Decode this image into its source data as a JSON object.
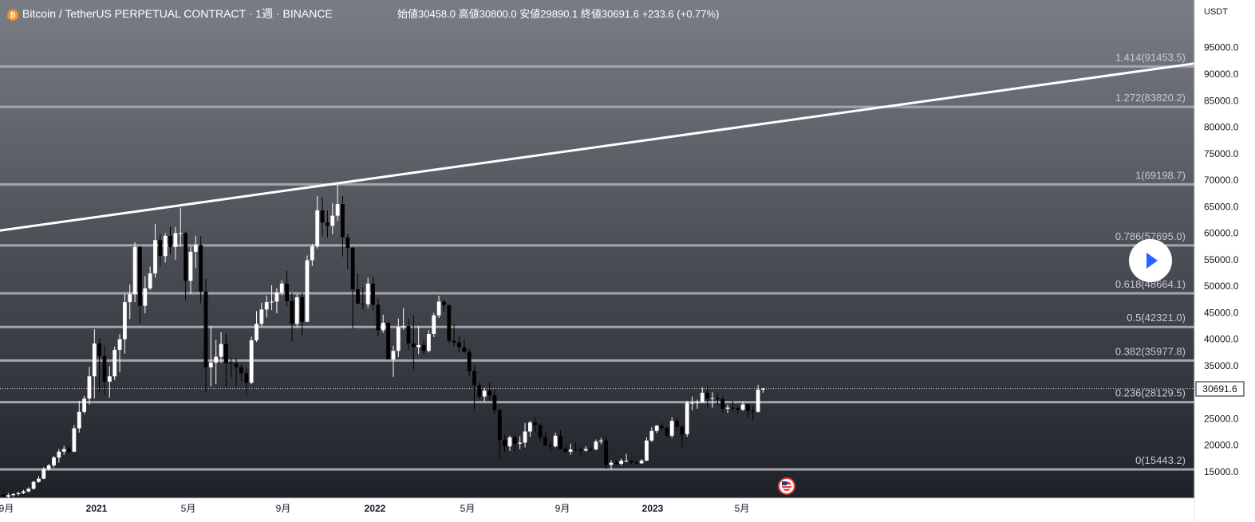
{
  "header": {
    "symbol": "Bitcoin / TetherUS PERPETUAL CONTRACT",
    "separator": " · ",
    "interval": "1週",
    "exchange": "BINANCE",
    "open_label": "始値",
    "open_value": "30458.0",
    "high_label": "高値",
    "high_value": "30800.0",
    "low_label": "安値",
    "low_value": "29890.1",
    "close_label": "終値",
    "close_value": "30691.6",
    "change": "+233.6 (+0.77%)"
  },
  "price_axis": {
    "currency": "USDT",
    "ticks": [
      "95000.0",
      "90000.0",
      "85000.0",
      "80000.0",
      "75000.0",
      "70000.0",
      "65000.0",
      "60000.0",
      "55000.0",
      "50000.0",
      "45000.0",
      "40000.0",
      "35000.0",
      "30000.0",
      "25000.0",
      "20000.0",
      "15000.0"
    ],
    "tick_values": [
      95000,
      90000,
      85000,
      80000,
      75000,
      70000,
      65000,
      60000,
      55000,
      50000,
      45000,
      40000,
      35000,
      30000,
      25000,
      20000,
      15000
    ],
    "last_price_label": "30691.6"
  },
  "time_axis": {
    "labels": [
      "9月",
      "2021",
      "5月",
      "9月",
      "2022",
      "5月",
      "9月",
      "2023",
      "5月"
    ],
    "bold": [
      false,
      true,
      false,
      false,
      true,
      false,
      false,
      true,
      false
    ]
  },
  "colors": {
    "bg_top": "#7b7d86",
    "bg_bottom": "#1f2128",
    "fib_line": "#a4a6ad",
    "candle_up": "#ffffff",
    "candle_down": "#000000",
    "trendline": "#ffffff",
    "axis_bg": "#ffffff",
    "axis_text": "#131722",
    "accent": "#f7931a"
  },
  "icons": {
    "symbol_logo": "bitcoin-logo-icon",
    "play": "play-icon",
    "event": "us-flag-event-icon"
  },
  "chart_data": {
    "type": "candlestick",
    "title": "Bitcoin / TetherUS PERPETUAL CONTRACT · 1週 · BINANCE",
    "interval": "1 week",
    "y_scale": "linear",
    "ylim": [
      10000,
      103000
    ],
    "fib_levels": [
      {
        "label": "1.414(91453.5)",
        "value": 91453.5
      },
      {
        "label": "1.272(83820.2)",
        "value": 83820.2
      },
      {
        "label": "1(69198.7)",
        "value": 69198.7
      },
      {
        "label": "0.786(57695.0)",
        "value": 57695.0
      },
      {
        "label": "0.618(48664.1)",
        "value": 48664.1
      },
      {
        "label": "0.5(42321.0)",
        "value": 42321.0
      },
      {
        "label": "0.382(35977.8)",
        "value": 35977.8
      },
      {
        "label": "0.236(28129.5)",
        "value": 28129.5
      },
      {
        "label": "0(15443.2)",
        "value": 15443.2
      }
    ],
    "trendline": {
      "start_price": 60500,
      "end_price": 92000
    },
    "last_price": 30691.6,
    "candles": [
      {
        "o": 10700,
        "h": 10900,
        "l": 10200,
        "c": 10300
      },
      {
        "o": 10300,
        "h": 11000,
        "l": 10100,
        "c": 10600
      },
      {
        "o": 10600,
        "h": 11000,
        "l": 10300,
        "c": 10800
      },
      {
        "o": 10800,
        "h": 11200,
        "l": 10500,
        "c": 11000
      },
      {
        "o": 11000,
        "h": 11600,
        "l": 10800,
        "c": 11300
      },
      {
        "o": 11300,
        "h": 12100,
        "l": 11100,
        "c": 11800
      },
      {
        "o": 11800,
        "h": 13300,
        "l": 11600,
        "c": 13100
      },
      {
        "o": 13100,
        "h": 14200,
        "l": 12900,
        "c": 13700
      },
      {
        "o": 13700,
        "h": 15900,
        "l": 13600,
        "c": 15500
      },
      {
        "o": 15500,
        "h": 16500,
        "l": 15200,
        "c": 16200
      },
      {
        "o": 16200,
        "h": 18000,
        "l": 15800,
        "c": 17700
      },
      {
        "o": 17700,
        "h": 19300,
        "l": 16700,
        "c": 18800
      },
      {
        "o": 18800,
        "h": 19900,
        "l": 18200,
        "c": 19300
      },
      {
        "o": 19300,
        "h": 19800,
        "l": 18500,
        "c": 18800
      },
      {
        "o": 18800,
        "h": 23800,
        "l": 18700,
        "c": 23200
      },
      {
        "o": 23200,
        "h": 28400,
        "l": 22400,
        "c": 26300
      },
      {
        "o": 26300,
        "h": 29300,
        "l": 25900,
        "c": 28800
      },
      {
        "o": 28800,
        "h": 34800,
        "l": 27700,
        "c": 33000
      },
      {
        "o": 33000,
        "h": 41900,
        "l": 28800,
        "c": 39200
      },
      {
        "o": 39200,
        "h": 40100,
        "l": 30100,
        "c": 36800
      },
      {
        "o": 36800,
        "h": 38800,
        "l": 29500,
        "c": 32000
      },
      {
        "o": 32000,
        "h": 34900,
        "l": 29000,
        "c": 33000
      },
      {
        "o": 33000,
        "h": 38600,
        "l": 32300,
        "c": 38000
      },
      {
        "o": 38000,
        "h": 41000,
        "l": 33800,
        "c": 40000
      },
      {
        "o": 40000,
        "h": 48500,
        "l": 37300,
        "c": 47000
      },
      {
        "o": 47000,
        "h": 50300,
        "l": 43800,
        "c": 48500
      },
      {
        "o": 48500,
        "h": 58300,
        "l": 47000,
        "c": 57400
      },
      {
        "o": 57400,
        "h": 57600,
        "l": 43000,
        "c": 46300
      },
      {
        "o": 46300,
        "h": 51900,
        "l": 44900,
        "c": 49600
      },
      {
        "o": 49600,
        "h": 53700,
        "l": 49300,
        "c": 52400
      },
      {
        "o": 52400,
        "h": 61700,
        "l": 51600,
        "c": 58700
      },
      {
        "o": 58700,
        "h": 59800,
        "l": 53700,
        "c": 55700
      },
      {
        "o": 55700,
        "h": 60000,
        "l": 54500,
        "c": 59500
      },
      {
        "o": 59500,
        "h": 61200,
        "l": 56000,
        "c": 57400
      },
      {
        "o": 57400,
        "h": 61200,
        "l": 55000,
        "c": 60000
      },
      {
        "o": 60000,
        "h": 64800,
        "l": 57500,
        "c": 60000
      },
      {
        "o": 60000,
        "h": 60300,
        "l": 47300,
        "c": 51000
      },
      {
        "o": 51000,
        "h": 57500,
        "l": 48500,
        "c": 56500
      },
      {
        "o": 56500,
        "h": 59500,
        "l": 53400,
        "c": 57800
      },
      {
        "o": 57800,
        "h": 59400,
        "l": 46800,
        "c": 49000
      },
      {
        "o": 49000,
        "h": 51400,
        "l": 30000,
        "c": 34700
      },
      {
        "o": 34700,
        "h": 42500,
        "l": 31100,
        "c": 35600
      },
      {
        "o": 35600,
        "h": 39900,
        "l": 31500,
        "c": 36700
      },
      {
        "o": 36700,
        "h": 41300,
        "l": 35500,
        "c": 39100
      },
      {
        "o": 39100,
        "h": 41100,
        "l": 31000,
        "c": 35500
      },
      {
        "o": 35500,
        "h": 36400,
        "l": 32800,
        "c": 35400
      },
      {
        "o": 35400,
        "h": 36500,
        "l": 31000,
        "c": 34700
      },
      {
        "o": 34700,
        "h": 35300,
        "l": 32100,
        "c": 33600
      },
      {
        "o": 33600,
        "h": 34600,
        "l": 29400,
        "c": 31800
      },
      {
        "o": 31800,
        "h": 40500,
        "l": 31500,
        "c": 39800
      },
      {
        "o": 39800,
        "h": 45300,
        "l": 39500,
        "c": 42900
      },
      {
        "o": 42900,
        "h": 46900,
        "l": 42500,
        "c": 45600
      },
      {
        "o": 45600,
        "h": 48200,
        "l": 44100,
        "c": 47000
      },
      {
        "o": 47000,
        "h": 50200,
        "l": 45500,
        "c": 47100
      },
      {
        "o": 47100,
        "h": 49600,
        "l": 44900,
        "c": 48800
      },
      {
        "o": 48800,
        "h": 51100,
        "l": 48300,
        "c": 50500
      },
      {
        "o": 50500,
        "h": 52900,
        "l": 46200,
        "c": 47200
      },
      {
        "o": 47200,
        "h": 48700,
        "l": 39600,
        "c": 42900
      },
      {
        "o": 42900,
        "h": 48500,
        "l": 42300,
        "c": 47900
      },
      {
        "o": 47900,
        "h": 48800,
        "l": 40700,
        "c": 43300
      },
      {
        "o": 43300,
        "h": 55800,
        "l": 43200,
        "c": 54900
      },
      {
        "o": 54900,
        "h": 58000,
        "l": 53800,
        "c": 57500
      },
      {
        "o": 57500,
        "h": 67000,
        "l": 57100,
        "c": 64300
      },
      {
        "o": 64300,
        "h": 66800,
        "l": 59500,
        "c": 62000
      },
      {
        "o": 62000,
        "h": 64300,
        "l": 59200,
        "c": 61400
      },
      {
        "o": 61400,
        "h": 65700,
        "l": 59800,
        "c": 63300
      },
      {
        "o": 63300,
        "h": 69100,
        "l": 62300,
        "c": 65500
      },
      {
        "o": 65500,
        "h": 67000,
        "l": 55600,
        "c": 59200
      },
      {
        "o": 59200,
        "h": 59900,
        "l": 53200,
        "c": 57200
      },
      {
        "o": 57200,
        "h": 57400,
        "l": 42000,
        "c": 49400
      },
      {
        "o": 49400,
        "h": 52400,
        "l": 47000,
        "c": 46700
      },
      {
        "o": 46700,
        "h": 49800,
        "l": 45600,
        "c": 46600
      },
      {
        "o": 46600,
        "h": 51600,
        "l": 45900,
        "c": 50500
      },
      {
        "o": 50500,
        "h": 51800,
        "l": 45500,
        "c": 46500
      },
      {
        "o": 46500,
        "h": 47800,
        "l": 40500,
        "c": 41700
      },
      {
        "o": 41700,
        "h": 44600,
        "l": 41200,
        "c": 43100
      },
      {
        "o": 43100,
        "h": 43200,
        "l": 36500,
        "c": 36200
      },
      {
        "o": 36200,
        "h": 38800,
        "l": 32900,
        "c": 37800
      },
      {
        "o": 37800,
        "h": 43900,
        "l": 36600,
        "c": 42300
      },
      {
        "o": 42300,
        "h": 45900,
        "l": 41800,
        "c": 42500
      },
      {
        "o": 42500,
        "h": 43900,
        "l": 38000,
        "c": 39200
      },
      {
        "o": 39200,
        "h": 44500,
        "l": 34300,
        "c": 38500
      },
      {
        "o": 38500,
        "h": 42500,
        "l": 37200,
        "c": 38900
      },
      {
        "o": 38900,
        "h": 39700,
        "l": 37100,
        "c": 37800
      },
      {
        "o": 37800,
        "h": 41700,
        "l": 37500,
        "c": 41000
      },
      {
        "o": 41000,
        "h": 45000,
        "l": 40400,
        "c": 44500
      },
      {
        "o": 44500,
        "h": 48200,
        "l": 44000,
        "c": 47100
      },
      {
        "o": 47100,
        "h": 47500,
        "l": 45200,
        "c": 46400
      },
      {
        "o": 46400,
        "h": 46600,
        "l": 39300,
        "c": 39700
      },
      {
        "o": 39700,
        "h": 42900,
        "l": 38700,
        "c": 39400
      },
      {
        "o": 39400,
        "h": 40600,
        "l": 37600,
        "c": 38500
      },
      {
        "o": 38500,
        "h": 40000,
        "l": 37500,
        "c": 37600
      },
      {
        "o": 37600,
        "h": 38200,
        "l": 33000,
        "c": 34000
      },
      {
        "o": 34000,
        "h": 35000,
        "l": 26700,
        "c": 31300
      },
      {
        "o": 31300,
        "h": 31900,
        "l": 28700,
        "c": 29200
      },
      {
        "o": 29200,
        "h": 30800,
        "l": 28300,
        "c": 30300
      },
      {
        "o": 30300,
        "h": 31900,
        "l": 28500,
        "c": 29400
      },
      {
        "o": 29400,
        "h": 30600,
        "l": 25900,
        "c": 26600
      },
      {
        "o": 26600,
        "h": 27000,
        "l": 17600,
        "c": 21000
      },
      {
        "o": 21000,
        "h": 21900,
        "l": 18700,
        "c": 19800
      },
      {
        "o": 19800,
        "h": 21800,
        "l": 18900,
        "c": 21500
      },
      {
        "o": 21500,
        "h": 22000,
        "l": 18800,
        "c": 20300
      },
      {
        "o": 20300,
        "h": 21700,
        "l": 19300,
        "c": 20500
      },
      {
        "o": 20500,
        "h": 24200,
        "l": 19600,
        "c": 22600
      },
      {
        "o": 22600,
        "h": 24600,
        "l": 21600,
        "c": 24300
      },
      {
        "o": 24300,
        "h": 25200,
        "l": 22500,
        "c": 23800
      },
      {
        "o": 23800,
        "h": 24100,
        "l": 20800,
        "c": 21500
      },
      {
        "o": 21500,
        "h": 22500,
        "l": 19800,
        "c": 20000
      },
      {
        "o": 20000,
        "h": 20800,
        "l": 18700,
        "c": 19800
      },
      {
        "o": 19800,
        "h": 22400,
        "l": 19600,
        "c": 21800
      },
      {
        "o": 21800,
        "h": 22800,
        "l": 19200,
        "c": 19300
      },
      {
        "o": 19300,
        "h": 19700,
        "l": 18500,
        "c": 18800
      },
      {
        "o": 18800,
        "h": 20300,
        "l": 18200,
        "c": 19200
      },
      {
        "o": 19200,
        "h": 20500,
        "l": 18900,
        "c": 19100
      },
      {
        "o": 19100,
        "h": 19700,
        "l": 18100,
        "c": 19000
      },
      {
        "o": 19000,
        "h": 19800,
        "l": 18800,
        "c": 19300
      },
      {
        "o": 19300,
        "h": 19600,
        "l": 18800,
        "c": 19200
      },
      {
        "o": 19200,
        "h": 21100,
        "l": 19100,
        "c": 20700
      },
      {
        "o": 20700,
        "h": 21400,
        "l": 20200,
        "c": 20900
      },
      {
        "o": 20900,
        "h": 21500,
        "l": 15600,
        "c": 16300
      },
      {
        "o": 16300,
        "h": 17200,
        "l": 15500,
        "c": 16700
      },
      {
        "o": 16700,
        "h": 17200,
        "l": 16300,
        "c": 16500
      },
      {
        "o": 16500,
        "h": 17500,
        "l": 16200,
        "c": 17100
      },
      {
        "o": 17100,
        "h": 18400,
        "l": 16800,
        "c": 17100
      },
      {
        "o": 17100,
        "h": 17200,
        "l": 16500,
        "c": 16800
      },
      {
        "o": 16800,
        "h": 17000,
        "l": 16500,
        "c": 16600
      },
      {
        "o": 16600,
        "h": 17400,
        "l": 16500,
        "c": 17100
      },
      {
        "o": 17100,
        "h": 21500,
        "l": 17000,
        "c": 20900
      },
      {
        "o": 20900,
        "h": 23400,
        "l": 20600,
        "c": 22700
      },
      {
        "o": 22700,
        "h": 23800,
        "l": 22300,
        "c": 23700
      },
      {
        "o": 23700,
        "h": 24300,
        "l": 22700,
        "c": 23300
      },
      {
        "o": 23300,
        "h": 23400,
        "l": 21500,
        "c": 21800
      },
      {
        "o": 21800,
        "h": 25300,
        "l": 21400,
        "c": 24600
      },
      {
        "o": 24600,
        "h": 25200,
        "l": 22800,
        "c": 23500
      },
      {
        "o": 23500,
        "h": 23700,
        "l": 19600,
        "c": 22100
      },
      {
        "o": 22100,
        "h": 28400,
        "l": 21600,
        "c": 28000
      },
      {
        "o": 28000,
        "h": 29200,
        "l": 26600,
        "c": 28000
      },
      {
        "o": 28000,
        "h": 28600,
        "l": 26900,
        "c": 28100
      },
      {
        "o": 28100,
        "h": 30900,
        "l": 28000,
        "c": 29900
      },
      {
        "o": 29900,
        "h": 31000,
        "l": 27100,
        "c": 28800
      },
      {
        "o": 28800,
        "h": 30000,
        "l": 27100,
        "c": 28900
      },
      {
        "o": 28900,
        "h": 29800,
        "l": 27700,
        "c": 28700
      },
      {
        "o": 28700,
        "h": 29200,
        "l": 26200,
        "c": 26900
      },
      {
        "o": 26900,
        "h": 27700,
        "l": 26100,
        "c": 27100
      },
      {
        "o": 27100,
        "h": 28400,
        "l": 26300,
        "c": 27000
      },
      {
        "o": 27000,
        "h": 27300,
        "l": 25900,
        "c": 26700
      },
      {
        "o": 26700,
        "h": 28200,
        "l": 26500,
        "c": 27700
      },
      {
        "o": 27700,
        "h": 27800,
        "l": 25100,
        "c": 26500
      },
      {
        "o": 26500,
        "h": 27500,
        "l": 24800,
        "c": 26300
      },
      {
        "o": 26300,
        "h": 31400,
        "l": 26200,
        "c": 30500
      },
      {
        "o": 30500,
        "h": 30800,
        "l": 29900,
        "c": 30700
      }
    ]
  }
}
